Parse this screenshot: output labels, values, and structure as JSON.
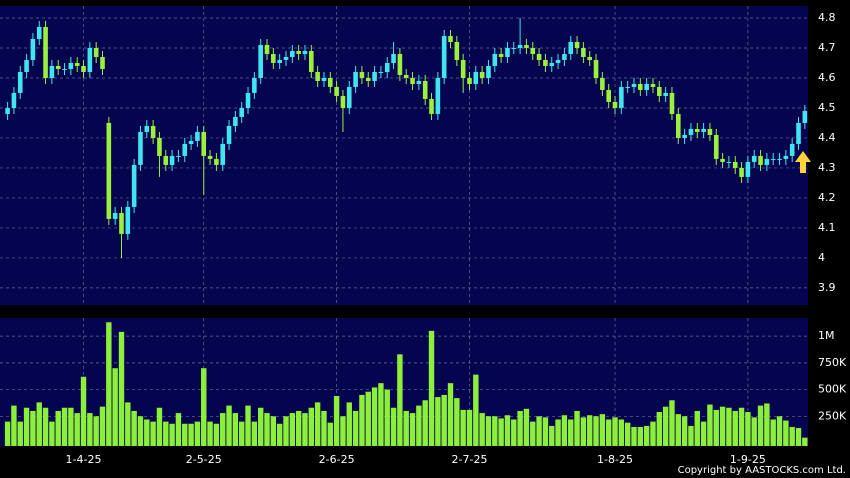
{
  "chart_data": [
    {
      "type": "candlestick",
      "up_color": "#3fe6f0",
      "down_color": "#9cf03c",
      "xlim": [
        -1.2,
        126.5
      ],
      "xticks": [
        {
          "value": 12,
          "label": "1-4-25"
        },
        {
          "value": 31,
          "label": "2-5-25"
        },
        {
          "value": 52,
          "label": "2-6-25"
        },
        {
          "value": 73,
          "label": "2-7-25"
        },
        {
          "value": 96,
          "label": "1-8-25"
        },
        {
          "value": 117,
          "label": "1-9-25"
        }
      ],
      "ylim": [
        3.843,
        4.84
      ],
      "yticks": [
        3.9,
        4,
        4.1,
        4.2,
        4.3,
        4.4,
        4.5,
        4.6,
        4.7,
        4.8
      ],
      "grid": true,
      "open": [
        4.48,
        4.5,
        4.55,
        4.62,
        4.66,
        4.73,
        4.77,
        4.6,
        4.64,
        4.63,
        4.63,
        4.65,
        4.64,
        4.62,
        4.7,
        4.67,
        4.45,
        4.13,
        4.15,
        4.08,
        4.17,
        4.31,
        4.42,
        4.44,
        4.4,
        4.34,
        4.31,
        4.34,
        4.34,
        4.38,
        4.39,
        4.42,
        4.34,
        4.33,
        4.31,
        4.38,
        4.44,
        4.47,
        4.5,
        4.55,
        4.6,
        4.71,
        4.68,
        4.65,
        4.66,
        4.67,
        4.69,
        4.68,
        4.69,
        4.62,
        4.59,
        4.6,
        4.57,
        4.54,
        4.5,
        4.57,
        4.62,
        4.6,
        4.59,
        4.62,
        4.62,
        4.65,
        4.68,
        4.61,
        4.6,
        4.58,
        4.59,
        4.53,
        4.48,
        4.6,
        4.74,
        4.72,
        4.66,
        4.6,
        4.58,
        4.62,
        4.6,
        4.64,
        4.68,
        4.67,
        4.7,
        4.7,
        4.71,
        4.7,
        4.68,
        4.66,
        4.64,
        4.65,
        4.66,
        4.68,
        4.72,
        4.7,
        4.67,
        4.66,
        4.6,
        4.56,
        4.52,
        4.5,
        4.57,
        4.57,
        4.58,
        4.56,
        4.58,
        4.57,
        4.54,
        4.55,
        4.48,
        4.4,
        4.41,
        4.43,
        4.42,
        4.43,
        4.41,
        4.33,
        4.32,
        4.32,
        4.3,
        4.27,
        4.32,
        4.34,
        4.31,
        4.33,
        4.33,
        4.33,
        4.34,
        4.38,
        4.45
      ],
      "high": [
        4.52,
        4.57,
        4.64,
        4.68,
        4.75,
        4.79,
        4.79,
        4.66,
        4.66,
        4.65,
        4.67,
        4.67,
        4.66,
        4.72,
        4.72,
        4.69,
        4.47,
        4.17,
        4.17,
        4.19,
        4.33,
        4.44,
        4.46,
        4.46,
        4.42,
        4.36,
        4.36,
        4.36,
        4.4,
        4.41,
        4.44,
        4.44,
        4.36,
        4.35,
        4.4,
        4.46,
        4.49,
        4.52,
        4.57,
        4.62,
        4.73,
        4.73,
        4.7,
        4.68,
        4.69,
        4.71,
        4.71,
        4.71,
        4.71,
        4.64,
        4.62,
        4.62,
        4.59,
        4.56,
        4.59,
        4.64,
        4.64,
        4.62,
        4.64,
        4.64,
        4.67,
        4.72,
        4.7,
        4.63,
        4.62,
        4.61,
        4.61,
        4.55,
        4.62,
        4.76,
        4.76,
        4.74,
        4.68,
        4.62,
        4.64,
        4.64,
        4.66,
        4.7,
        4.7,
        4.72,
        4.72,
        4.8,
        4.73,
        4.72,
        4.7,
        4.68,
        4.67,
        4.68,
        4.7,
        4.74,
        4.74,
        4.72,
        4.69,
        4.68,
        4.62,
        4.58,
        4.54,
        4.59,
        4.59,
        4.6,
        4.6,
        4.6,
        4.6,
        4.59,
        4.57,
        4.57,
        4.5,
        4.43,
        4.45,
        4.45,
        4.45,
        4.45,
        4.43,
        4.35,
        4.34,
        4.34,
        4.32,
        4.34,
        4.36,
        4.36,
        4.35,
        4.35,
        4.35,
        4.36,
        4.4,
        4.47,
        4.51
      ],
      "low": [
        4.46,
        4.48,
        4.53,
        4.6,
        4.64,
        4.71,
        4.58,
        4.58,
        4.61,
        4.61,
        4.61,
        4.62,
        4.6,
        4.6,
        4.65,
        4.61,
        4.11,
        4.11,
        4.0,
        4.06,
        4.15,
        4.29,
        4.4,
        4.38,
        4.27,
        4.29,
        4.29,
        4.32,
        4.32,
        4.36,
        4.37,
        4.21,
        4.31,
        4.29,
        4.29,
        4.36,
        4.42,
        4.45,
        4.48,
        4.53,
        4.58,
        4.66,
        4.63,
        4.63,
        4.64,
        4.65,
        4.66,
        4.66,
        4.6,
        4.57,
        4.57,
        4.55,
        4.52,
        4.42,
        4.48,
        4.55,
        4.58,
        4.57,
        4.57,
        4.6,
        4.6,
        4.63,
        4.59,
        4.58,
        4.56,
        4.56,
        4.51,
        4.46,
        4.46,
        4.58,
        4.7,
        4.64,
        4.55,
        4.56,
        4.56,
        4.58,
        4.58,
        4.62,
        4.65,
        4.65,
        4.68,
        4.68,
        4.68,
        4.66,
        4.64,
        4.62,
        4.62,
        4.63,
        4.64,
        4.66,
        4.68,
        4.65,
        4.64,
        4.58,
        4.54,
        4.5,
        4.48,
        4.48,
        4.55,
        4.55,
        4.54,
        4.54,
        4.55,
        4.52,
        4.52,
        4.46,
        4.38,
        4.38,
        4.39,
        4.4,
        4.4,
        4.39,
        4.31,
        4.3,
        4.3,
        4.28,
        4.25,
        4.25,
        4.3,
        4.29,
        4.29,
        4.31,
        4.31,
        4.31,
        4.32,
        4.36,
        4.43
      ],
      "close": [
        4.5,
        4.55,
        4.62,
        4.66,
        4.73,
        4.77,
        4.6,
        4.64,
        4.63,
        4.63,
        4.65,
        4.64,
        4.62,
        4.7,
        4.67,
        4.63,
        4.13,
        4.15,
        4.08,
        4.17,
        4.31,
        4.42,
        4.44,
        4.4,
        4.34,
        4.31,
        4.34,
        4.34,
        4.38,
        4.39,
        4.42,
        4.34,
        4.33,
        4.31,
        4.38,
        4.44,
        4.47,
        4.5,
        4.55,
        4.6,
        4.71,
        4.68,
        4.65,
        4.66,
        4.67,
        4.69,
        4.68,
        4.69,
        4.62,
        4.59,
        4.6,
        4.57,
        4.54,
        4.5,
        4.57,
        4.62,
        4.6,
        4.59,
        4.62,
        4.62,
        4.65,
        4.68,
        4.61,
        4.6,
        4.58,
        4.59,
        4.53,
        4.48,
        4.6,
        4.74,
        4.72,
        4.66,
        4.6,
        4.58,
        4.62,
        4.6,
        4.64,
        4.68,
        4.67,
        4.7,
        4.7,
        4.71,
        4.7,
        4.68,
        4.66,
        4.64,
        4.65,
        4.66,
        4.68,
        4.72,
        4.7,
        4.67,
        4.66,
        4.6,
        4.56,
        4.52,
        4.5,
        4.57,
        4.57,
        4.58,
        4.56,
        4.58,
        4.57,
        4.54,
        4.55,
        4.48,
        4.4,
        4.41,
        4.43,
        4.42,
        4.43,
        4.41,
        4.33,
        4.32,
        4.32,
        4.3,
        4.27,
        4.32,
        4.34,
        4.31,
        4.33,
        4.33,
        4.33,
        4.34,
        4.38,
        4.45,
        4.49
      ]
    },
    {
      "type": "bar",
      "color": "#8cf03a",
      "xlim": [
        -1.2,
        126.5
      ],
      "xticks": [
        {
          "value": 12,
          "label": "1-4-25"
        },
        {
          "value": 31,
          "label": "2-5-25"
        },
        {
          "value": 52,
          "label": "2-6-25"
        },
        {
          "value": 73,
          "label": "2-7-25"
        },
        {
          "value": 96,
          "label": "1-8-25"
        },
        {
          "value": 117,
          "label": "1-9-25"
        }
      ],
      "ylim": [
        0,
        1170000
      ],
      "yticks": [
        {
          "value": 250000,
          "label": "250K"
        },
        {
          "value": 500000,
          "label": "500K"
        },
        {
          "value": 750000,
          "label": "750K"
        },
        {
          "value": 1000000,
          "label": "1M"
        }
      ],
      "grid": true,
      "values": [
        200000,
        350000,
        200000,
        330000,
        300000,
        380000,
        330000,
        200000,
        300000,
        330000,
        330000,
        280000,
        620000,
        280000,
        250000,
        340000,
        1130000,
        700000,
        1040000,
        380000,
        300000,
        250000,
        220000,
        200000,
        330000,
        200000,
        180000,
        280000,
        180000,
        180000,
        200000,
        700000,
        200000,
        180000,
        280000,
        350000,
        280000,
        200000,
        350000,
        200000,
        330000,
        280000,
        250000,
        180000,
        250000,
        280000,
        300000,
        280000,
        330000,
        380000,
        300000,
        190000,
        440000,
        250000,
        380000,
        300000,
        450000,
        480000,
        520000,
        560000,
        500000,
        330000,
        830000,
        300000,
        280000,
        350000,
        400000,
        1050000,
        430000,
        450000,
        560000,
        420000,
        310000,
        310000,
        640000,
        280000,
        250000,
        250000,
        230000,
        260000,
        220000,
        300000,
        320000,
        200000,
        250000,
        240000,
        160000,
        220000,
        260000,
        220000,
        300000,
        240000,
        260000,
        250000,
        270000,
        220000,
        240000,
        220000,
        190000,
        150000,
        150000,
        160000,
        200000,
        290000,
        340000,
        400000,
        270000,
        250000,
        160000,
        300000,
        200000,
        360000,
        310000,
        340000,
        330000,
        300000,
        330000,
        290000,
        240000,
        350000,
        370000,
        220000,
        250000,
        210000,
        150000,
        140000,
        50000
      ]
    }
  ],
  "copyright": "Copyright by AASTOCKS.com Ltd."
}
